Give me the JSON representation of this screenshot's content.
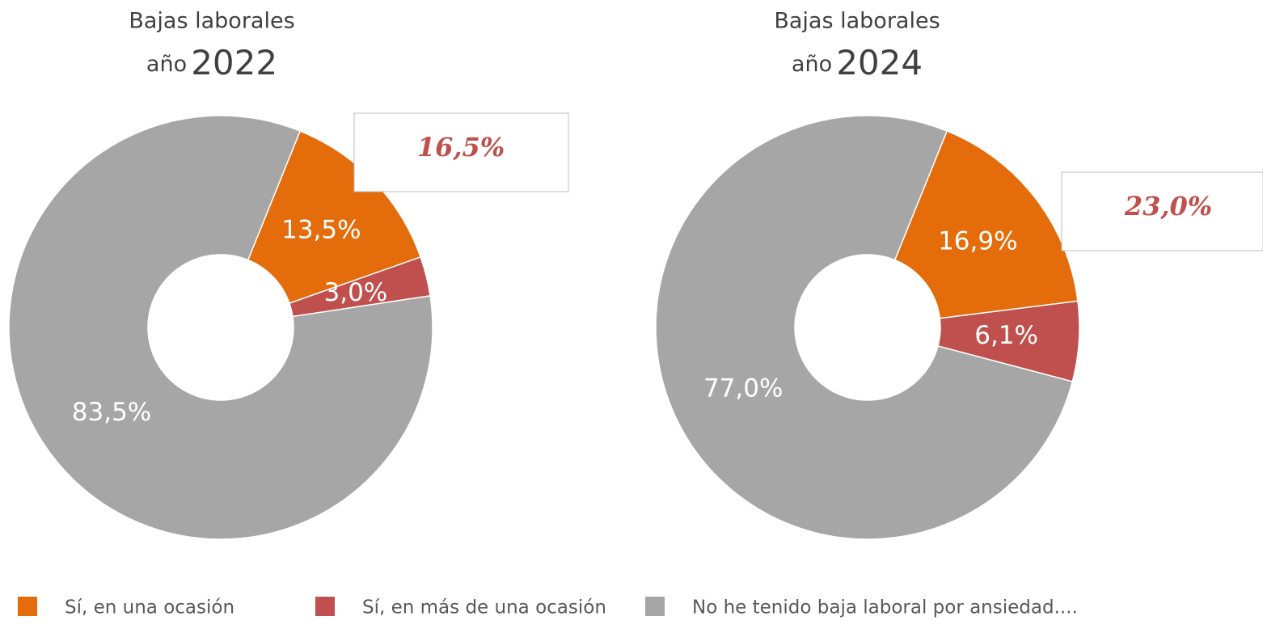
{
  "chart_data": [
    {
      "type": "pie",
      "title": "Bajas laborales",
      "subtitle": [
        "año",
        "2022"
      ],
      "values": [
        13.5,
        3.0,
        83.5
      ],
      "value_labels": [
        "13,5%",
        "3,0%",
        "83,5%"
      ],
      "annotation": "16,5%"
    },
    {
      "type": "pie",
      "title": "Bajas laborales",
      "subtitle": [
        "año",
        "2024"
      ],
      "values": [
        16.9,
        6.1,
        77.0
      ],
      "value_labels": [
        "16,9%",
        "6,1%",
        "77,0%"
      ],
      "annotation": "23,0%"
    }
  ],
  "legend": {
    "labels": [
      "Sí, en una ocasión",
      "Sí, en más de una ocasión",
      "No he tenido baja laboral por ansiedad...."
    ],
    "colors": [
      "#e46c0a",
      "#c0504d",
      "#a6a6a6"
    ]
  }
}
